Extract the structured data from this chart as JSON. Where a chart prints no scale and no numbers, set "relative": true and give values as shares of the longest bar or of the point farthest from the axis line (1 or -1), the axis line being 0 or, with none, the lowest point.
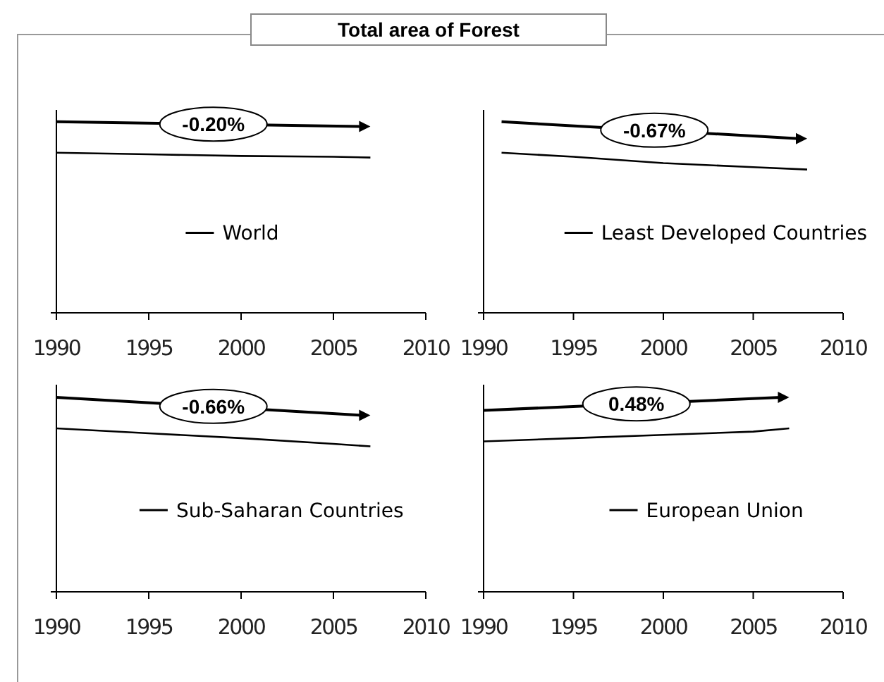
{
  "chart_data": [
    {
      "type": "line",
      "title": "Total area of Forest",
      "relative": true,
      "x": [
        1990,
        1995,
        2000,
        2005,
        2007
      ],
      "series": [
        {
          "name": "World",
          "color": "#000000",
          "values": [
            1,
            0.99,
            0.98,
            0.975,
            0.97
          ]
        }
      ],
      "xlim": [
        1990,
        2010
      ],
      "xticks": [
        1990,
        1995,
        2000,
        2005,
        2010
      ],
      "legend": "center",
      "annotations": [
        "-0.20%"
      ]
    },
    {
      "type": "line",
      "relative": true,
      "x": [
        1991,
        1995,
        2000,
        2005,
        2008
      ],
      "series": [
        {
          "name": "Least Developed Countries",
          "color": "#000000",
          "values": [
            1,
            0.975,
            0.935,
            0.91,
            0.895
          ]
        }
      ],
      "xlim": [
        1990,
        2010
      ],
      "xticks": [
        1990,
        1995,
        2000,
        2005,
        2010
      ],
      "legend": "center",
      "annotations": [
        "-0.67%"
      ]
    },
    {
      "type": "line",
      "relative": true,
      "x": [
        1990,
        1995,
        2000,
        2005,
        2007
      ],
      "series": [
        {
          "name": "Sub-Saharan Countries",
          "color": "#000000",
          "values": [
            1,
            0.97,
            0.94,
            0.905,
            0.89
          ]
        }
      ],
      "xlim": [
        1990,
        2010
      ],
      "xticks": [
        1990,
        1995,
        2000,
        2005,
        2010
      ],
      "legend": "center",
      "annotations": [
        "-0.66%"
      ]
    },
    {
      "type": "line",
      "relative": true,
      "x": [
        1990,
        1995,
        2000,
        2005,
        2007
      ],
      "series": [
        {
          "name": "European Union",
          "color": "#000000",
          "values": [
            0.92,
            0.94,
            0.96,
            0.98,
            1
          ]
        }
      ],
      "xlim": [
        1990,
        2010
      ],
      "xticks": [
        1990,
        1995,
        2000,
        2005,
        2010
      ],
      "legend": "center",
      "annotations": [
        "0.48%"
      ]
    }
  ]
}
